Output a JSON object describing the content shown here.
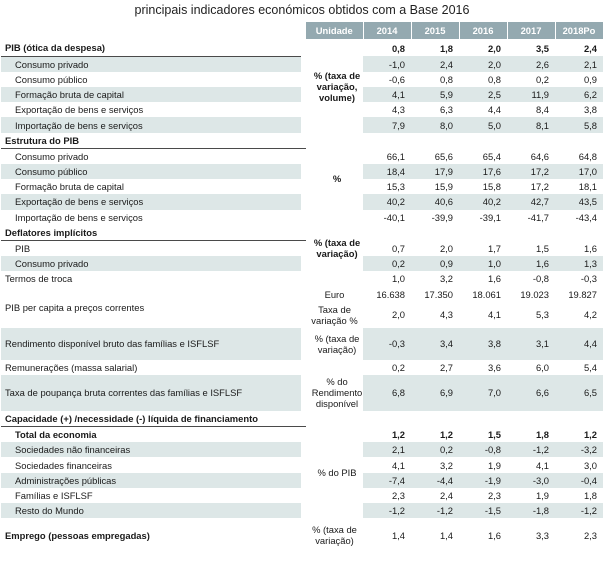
{
  "title": "principais indicadores económicos obtidos com a Base 2016",
  "header": {
    "unit": "Unidade",
    "years": [
      "2014",
      "2015",
      "2016",
      "2017",
      "2018Po"
    ]
  },
  "sections": {
    "pib": {
      "label": "PIB (ótica da despesa)",
      "unit": "% (taxa de variação, volume)",
      "values": [
        "0,8",
        "1,8",
        "2,0",
        "3,5",
        "2,4"
      ],
      "rows": [
        {
          "label": "Consumo privado",
          "values": [
            "-1,0",
            "2,4",
            "2,0",
            "2,6",
            "2,1"
          ]
        },
        {
          "label": "Consumo público",
          "values": [
            "-0,6",
            "0,8",
            "0,8",
            "0,2",
            "0,9"
          ]
        },
        {
          "label": "Formação bruta de capital",
          "values": [
            "4,1",
            "5,9",
            "2,5",
            "11,9",
            "6,2"
          ]
        },
        {
          "label": "Exportação de bens e serviços",
          "values": [
            "4,3",
            "6,3",
            "4,4",
            "8,4",
            "3,8"
          ]
        },
        {
          "label": "Importação de bens e serviços",
          "values": [
            "7,9",
            "8,0",
            "5,0",
            "8,1",
            "5,8"
          ]
        }
      ]
    },
    "estrutura": {
      "label": "Estrutura do PIB",
      "unit": "%",
      "rows": [
        {
          "label": "Consumo privado",
          "values": [
            "66,1",
            "65,6",
            "65,4",
            "64,6",
            "64,8"
          ]
        },
        {
          "label": "Consumo público",
          "values": [
            "18,4",
            "17,9",
            "17,6",
            "17,2",
            "17,0"
          ]
        },
        {
          "label": "Formação bruta de capital",
          "values": [
            "15,3",
            "15,9",
            "15,8",
            "17,2",
            "18,1"
          ]
        },
        {
          "label": "Exportação de bens e serviços",
          "values": [
            "40,2",
            "40,6",
            "40,2",
            "42,7",
            "43,5"
          ]
        },
        {
          "label": "Importação de bens e serviços",
          "values": [
            "-40,1",
            "-39,9",
            "-39,1",
            "-41,7",
            "-43,4"
          ]
        }
      ]
    },
    "deflatores": {
      "label": "Deflatores implícitos",
      "unit": "% (taxa de variação)",
      "rows": [
        {
          "label": "PIB",
          "values": [
            "0,7",
            "2,0",
            "1,7",
            "1,5",
            "1,6"
          ]
        },
        {
          "label": "Consumo privado",
          "values": [
            "0,2",
            "0,9",
            "1,0",
            "1,6",
            "1,3"
          ]
        }
      ],
      "termos": {
        "label": "Termos de troca",
        "values": [
          "1,0",
          "3,2",
          "1,6",
          "-0,8",
          "-0,3"
        ]
      }
    },
    "pib_capita": {
      "label": "PIB per capita a preços correntes",
      "unit_euro": "Euro",
      "values_euro": [
        "16.638",
        "17.350",
        "18.061",
        "19.023",
        "19.827"
      ],
      "unit_rate": "Taxa de variação %",
      "values_rate": [
        "2,0",
        "4,3",
        "4,1",
        "5,3",
        "4,2"
      ]
    },
    "rendimento": {
      "label": "Rendimento disponível bruto das famílias e ISFLSF",
      "unit": "% (taxa de variação)",
      "values": [
        "-0,3",
        "3,4",
        "3,8",
        "3,1",
        "4,4"
      ]
    },
    "remuneracoes": {
      "label": "Remunerações (massa salarial)",
      "values": [
        "0,2",
        "2,7",
        "3,6",
        "6,0",
        "5,4"
      ]
    },
    "poupanca": {
      "label": "Taxa de poupança bruta correntes das famílias e ISFLSF",
      "unit": "% do Rendimento disponível",
      "values": [
        "6,8",
        "6,9",
        "7,0",
        "6,6",
        "6,5"
      ]
    },
    "capacidade": {
      "label": "Capacidade (+) /necessidade (-) líquida de financiamento",
      "unit": "% do PIB",
      "total": {
        "label": "Total da economia",
        "values": [
          "1,2",
          "1,2",
          "1,5",
          "1,8",
          "1,2"
        ]
      },
      "rows": [
        {
          "label": "Sociedades não financeiras",
          "values": [
            "2,1",
            "0,2",
            "-0,8",
            "-1,2",
            "-3,2"
          ]
        },
        {
          "label": "Sociedades financeiras",
          "values": [
            "4,1",
            "3,2",
            "1,9",
            "4,1",
            "3,0"
          ]
        },
        {
          "label": "Administrações públicas",
          "values": [
            "-7,4",
            "-4,4",
            "-1,9",
            "-3,0",
            "-0,4"
          ]
        },
        {
          "label": "Famílias e ISFLSF",
          "values": [
            "2,3",
            "2,4",
            "2,3",
            "1,9",
            "1,8"
          ]
        },
        {
          "label": "Resto do Mundo",
          "values": [
            "-1,2",
            "-1,2",
            "-1,5",
            "-1,8",
            "-1,2"
          ]
        }
      ]
    },
    "emprego": {
      "label": "Emprego (pessoas empregadas)",
      "unit": "% (taxa de variação)",
      "values": [
        "1,4",
        "1,4",
        "1,6",
        "3,3",
        "2,3"
      ]
    }
  }
}
